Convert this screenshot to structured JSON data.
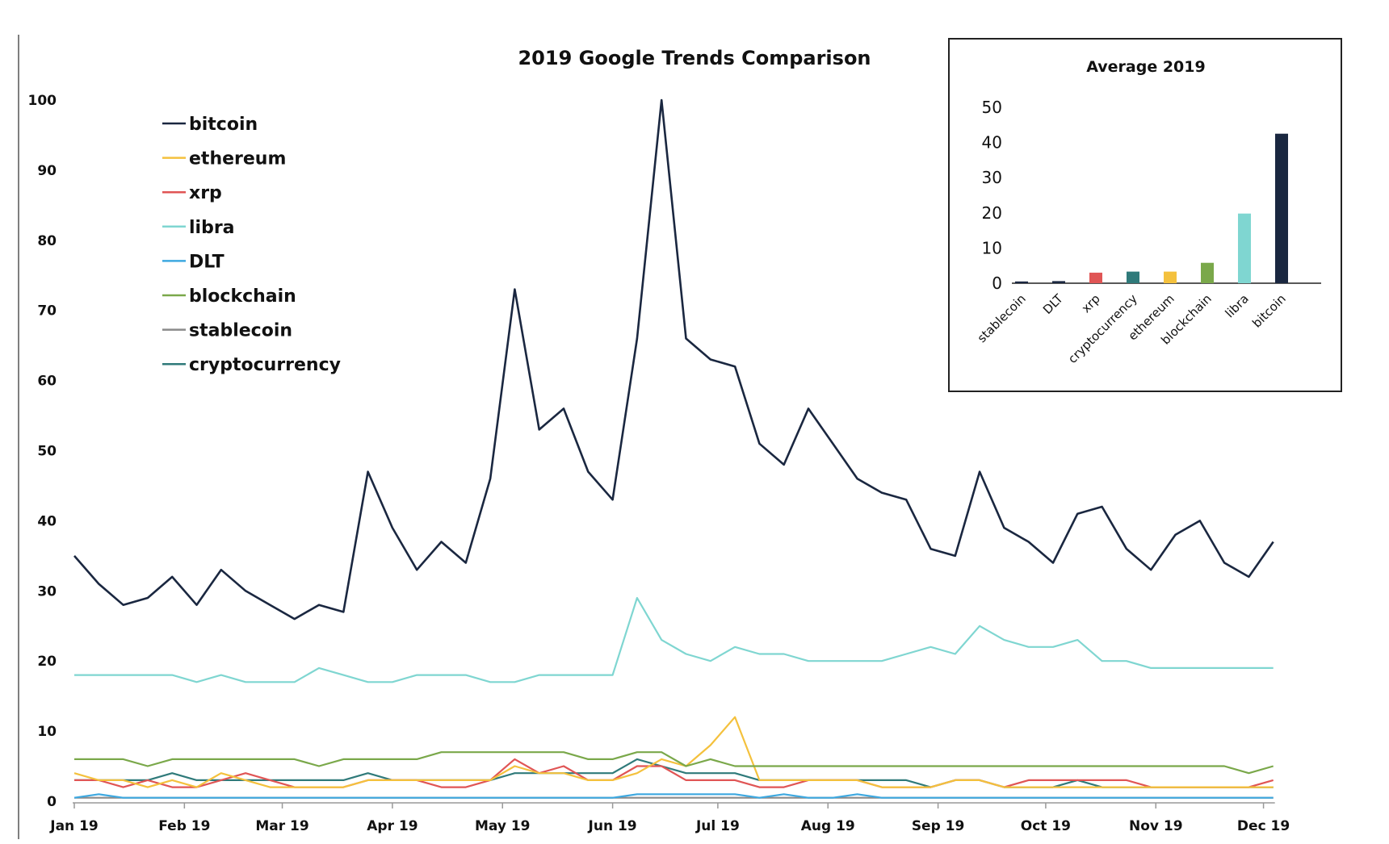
{
  "chart_data": [
    {
      "type": "line",
      "title": "2019 Google Trends Comparison",
      "xlabel": "",
      "ylabel": "",
      "ylim": [
        0,
        100
      ],
      "yticks": [
        0,
        10,
        20,
        30,
        40,
        50,
        60,
        70,
        80,
        90,
        100
      ],
      "x_tick_labels": [
        "Jan 19",
        "Feb 19",
        "Mar 19",
        "Apr 19",
        "May 19",
        "Jun 19",
        "Jul 19",
        "Aug 19",
        "Sep 19",
        "Oct 19",
        "Nov 19",
        "Dec 19"
      ],
      "x_tick_week_index": [
        0,
        4.5,
        8.5,
        13,
        17.5,
        22,
        26.3,
        30.8,
        35.3,
        39.7,
        44.2,
        48.6
      ],
      "legend_position": "top-left",
      "grid": false,
      "series": [
        {
          "name": "bitcoin",
          "color": "#1a2740",
          "values": [
            35,
            31,
            28,
            29,
            32,
            28,
            33,
            30,
            28,
            26,
            28,
            27,
            47,
            39,
            33,
            37,
            34,
            46,
            73,
            53,
            56,
            47,
            43,
            66,
            100,
            66,
            63,
            62,
            51,
            48,
            56,
            51,
            46,
            44,
            43,
            36,
            35,
            47,
            39,
            37,
            34,
            41,
            42,
            36,
            33,
            38,
            40,
            34,
            32,
            37
          ]
        },
        {
          "name": "ethereum",
          "color": "#f4c13d",
          "values": [
            4,
            3,
            3,
            2,
            3,
            2,
            4,
            3,
            2,
            2,
            2,
            2,
            3,
            3,
            3,
            3,
            3,
            3,
            5,
            4,
            4,
            3,
            3,
            4,
            6,
            5,
            8,
            12,
            3,
            3,
            3,
            3,
            3,
            2,
            2,
            2,
            3,
            3,
            2,
            2,
            2,
            2,
            2,
            2,
            2,
            2,
            2,
            2,
            2,
            2
          ]
        },
        {
          "name": "xrp",
          "color": "#e05555",
          "values": [
            3,
            3,
            2,
            3,
            2,
            2,
            3,
            4,
            3,
            2,
            2,
            2,
            3,
            3,
            3,
            2,
            2,
            3,
            6,
            4,
            5,
            3,
            3,
            5,
            5,
            3,
            3,
            3,
            2,
            2,
            3,
            3,
            3,
            2,
            2,
            2,
            3,
            3,
            2,
            3,
            3,
            3,
            3,
            3,
            2,
            2,
            2,
            2,
            2,
            3
          ]
        },
        {
          "name": "libra",
          "color": "#7fd6d1",
          "values": [
            18,
            18,
            18,
            18,
            18,
            17,
            18,
            17,
            17,
            17,
            19,
            18,
            17,
            17,
            18,
            18,
            18,
            17,
            17,
            18,
            18,
            18,
            18,
            29,
            23,
            21,
            20,
            22,
            21,
            21,
            20,
            20,
            20,
            20,
            21,
            22,
            21,
            25,
            23,
            22,
            22,
            23,
            20,
            20,
            19,
            19,
            19,
            19,
            19,
            19
          ]
        },
        {
          "name": "DLT",
          "color": "#3da8e0",
          "values": [
            0.5,
            1,
            0.5,
            0.5,
            0.5,
            0.5,
            0.5,
            0.5,
            0.5,
            0.5,
            0.5,
            0.5,
            0.5,
            0.5,
            0.5,
            0.5,
            0.5,
            0.5,
            0.5,
            0.5,
            0.5,
            0.5,
            0.5,
            1,
            1,
            1,
            1,
            1,
            0.5,
            1,
            0.5,
            0.5,
            1,
            0.5,
            0.5,
            0.5,
            0.5,
            0.5,
            0.5,
            0.5,
            0.5,
            0.5,
            0.5,
            0.5,
            0.5,
            0.5,
            0.5,
            0.5,
            0.5,
            0.5
          ]
        },
        {
          "name": "blockchain",
          "color": "#7aa84a",
          "values": [
            6,
            6,
            6,
            5,
            6,
            6,
            6,
            6,
            6,
            6,
            5,
            6,
            6,
            6,
            6,
            7,
            7,
            7,
            7,
            7,
            7,
            6,
            6,
            7,
            7,
            5,
            6,
            5,
            5,
            5,
            5,
            5,
            5,
            5,
            5,
            5,
            5,
            5,
            5,
            5,
            5,
            5,
            5,
            5,
            5,
            5,
            5,
            5,
            4,
            5
          ]
        },
        {
          "name": "stablecoin",
          "color": "#8a8a8a",
          "values": [
            0.5,
            0.5,
            0.5,
            0.5,
            0.5,
            0.5,
            0.5,
            0.5,
            0.5,
            0.5,
            0.5,
            0.5,
            0.5,
            0.5,
            0.5,
            0.5,
            0.5,
            0.5,
            0.5,
            0.5,
            0.5,
            0.5,
            0.5,
            0.5,
            0.5,
            0.5,
            0.5,
            0.5,
            0.5,
            0.5,
            0.5,
            0.5,
            0.5,
            0.5,
            0.5,
            0.5,
            0.5,
            0.5,
            0.5,
            0.5,
            0.5,
            0.5,
            0.5,
            0.5,
            0.5,
            0.5,
            0.5,
            0.5,
            0.5,
            0.5
          ]
        },
        {
          "name": "cryptocurrency",
          "color": "#2f7a7a",
          "values": [
            3,
            3,
            3,
            3,
            4,
            3,
            3,
            3,
            3,
            3,
            3,
            3,
            4,
            3,
            3,
            3,
            3,
            3,
            4,
            4,
            4,
            4,
            4,
            6,
            5,
            4,
            4,
            4,
            3,
            3,
            3,
            3,
            3,
            3,
            3,
            2,
            3,
            3,
            2,
            2,
            2,
            3,
            2,
            2,
            2,
            2,
            2,
            2,
            2,
            2
          ]
        }
      ]
    },
    {
      "type": "bar",
      "title": "Average 2019",
      "xlabel": "",
      "ylabel": "",
      "ylim": [
        0,
        50
      ],
      "yticks": [
        0,
        10,
        20,
        30,
        40,
        50
      ],
      "categories": [
        "stablecoin",
        "DLT",
        "xrp",
        "cryptocurrency",
        "ethereum",
        "blockchain",
        "libra",
        "bitcoin"
      ],
      "values": [
        0.5,
        0.6,
        3.0,
        3.3,
        3.3,
        5.8,
        19.8,
        42.5
      ],
      "colors": [
        "#1a2740",
        "#1a2740",
        "#e05555",
        "#2f7a7a",
        "#f4c13d",
        "#7aa84a",
        "#7fd6d1",
        "#1a2740"
      ],
      "grid": false
    }
  ]
}
